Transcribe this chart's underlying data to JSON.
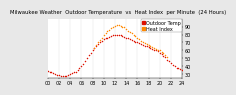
{
  "title": "Milwaukee Weather  Outdoor Temperature  vs  Heat Index  per Minute  (24 Hours)",
  "legend_labels": [
    "Outdoor Temp",
    "Heat Index"
  ],
  "legend_colors": [
    "#dd1100",
    "#ff8800"
  ],
  "bg_color": "#e8e8e8",
  "plot_bg": "#ffffff",
  "ylim": [
    25,
    100
  ],
  "xlim": [
    0,
    1440
  ],
  "yticks": [
    30,
    40,
    50,
    60,
    70,
    80,
    90
  ],
  "ytick_labels": [
    "30",
    "40",
    "50",
    "60",
    "70",
    "80",
    "90"
  ],
  "grid_positions": [
    120,
    240,
    360,
    480,
    600,
    720,
    840,
    960,
    1080,
    1200,
    1320
  ],
  "temp_color": "#dd1100",
  "heat_color": "#ff8800",
  "temp_data_x": [
    0,
    20,
    40,
    60,
    80,
    100,
    120,
    140,
    160,
    180,
    200,
    220,
    240,
    260,
    280,
    300,
    320,
    340,
    360,
    380,
    400,
    420,
    440,
    460,
    480,
    500,
    520,
    540,
    560,
    580,
    600,
    620,
    640,
    660,
    680,
    700,
    720,
    740,
    760,
    780,
    800,
    820,
    840,
    860,
    880,
    900,
    920,
    940,
    960,
    980,
    1000,
    1020,
    1040,
    1060,
    1080,
    1100,
    1120,
    1140,
    1160,
    1180,
    1200,
    1220,
    1240,
    1260,
    1280,
    1300,
    1320,
    1340,
    1360,
    1380,
    1400,
    1420,
    1440
  ],
  "temp_data_y": [
    34,
    33,
    32,
    31,
    30,
    29,
    29,
    28,
    28,
    28,
    28,
    29,
    30,
    31,
    32,
    33,
    35,
    37,
    40,
    43,
    46,
    50,
    54,
    57,
    60,
    63,
    66,
    68,
    70,
    72,
    74,
    75,
    76,
    77,
    78,
    79,
    80,
    80,
    80,
    79,
    78,
    77,
    76,
    75,
    74,
    73,
    72,
    71,
    70,
    69,
    68,
    67,
    66,
    65,
    64,
    63,
    62,
    61,
    60,
    59,
    57,
    55,
    53,
    51,
    48,
    46,
    44,
    42,
    40,
    38,
    37,
    36,
    35
  ],
  "heat_data_x": [
    500,
    520,
    540,
    560,
    580,
    600,
    620,
    640,
    660,
    680,
    700,
    720,
    740,
    760,
    780,
    800,
    820,
    840,
    860,
    880,
    900,
    920,
    940,
    960,
    980,
    1000,
    1020,
    1040,
    1060,
    1080,
    1100,
    1120,
    1140,
    1160,
    1180,
    1200,
    1220,
    1240,
    1260,
    1280
  ],
  "heat_data_y": [
    63,
    67,
    70,
    73,
    76,
    79,
    82,
    84,
    86,
    88,
    90,
    91,
    92,
    92,
    91,
    90,
    89,
    87,
    85,
    83,
    82,
    80,
    78,
    76,
    74,
    72,
    71,
    69,
    68,
    67,
    65,
    64,
    63,
    62,
    61,
    60,
    58,
    56,
    54,
    52
  ],
  "marker_size": 1.2,
  "tick_fontsize": 3.5,
  "title_fontsize": 3.8,
  "legend_fontsize": 3.5
}
